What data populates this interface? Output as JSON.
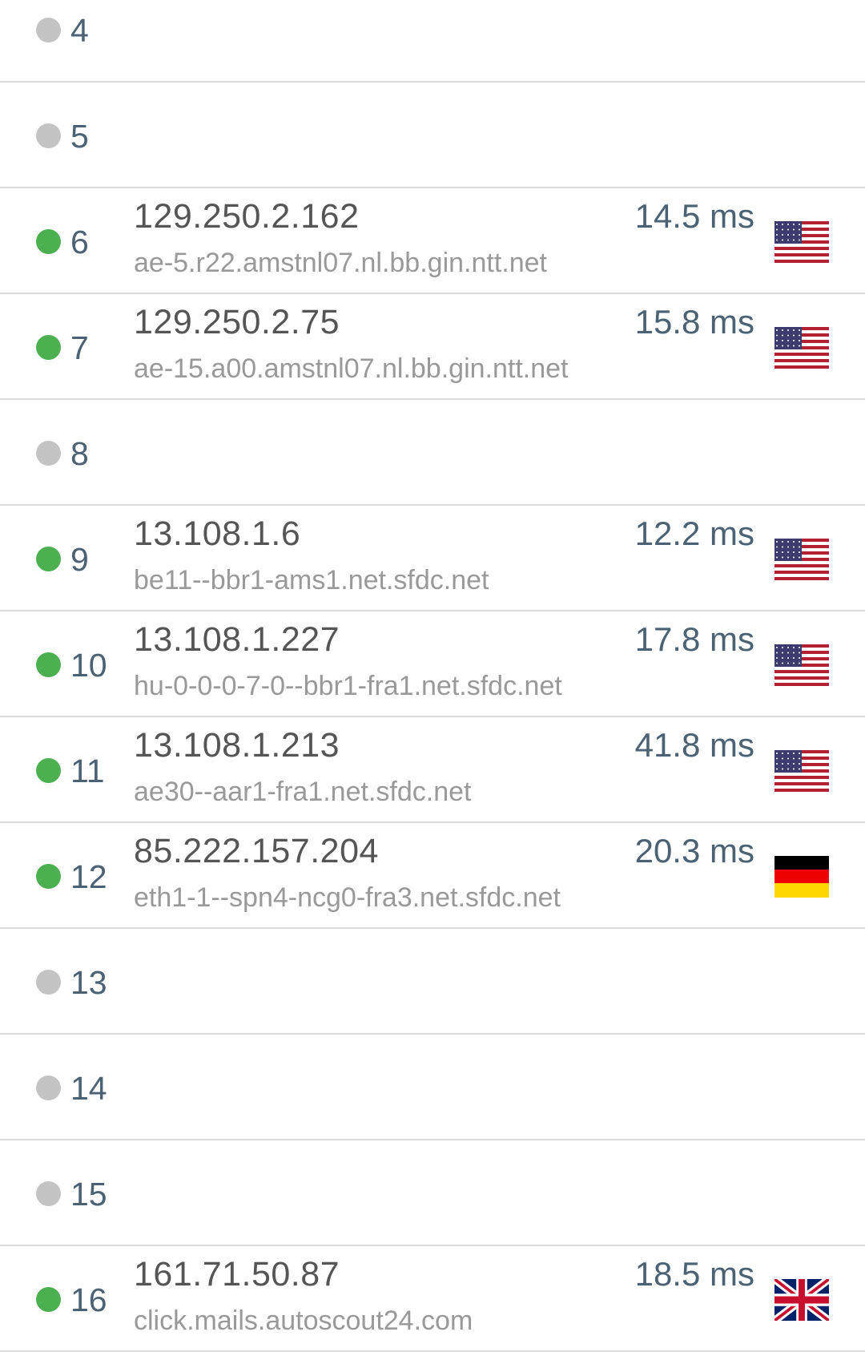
{
  "colors": {
    "responded": "#4caf50",
    "no_response": "#c4c4c4"
  },
  "hops": [
    {
      "hop": "4",
      "status": "no_response"
    },
    {
      "hop": "5",
      "status": "no_response"
    },
    {
      "hop": "6",
      "status": "responded",
      "ip": "129.250.2.162",
      "host": "ae-5.r22.amstnl07.nl.bb.gin.ntt.net",
      "latency": "14.5 ms",
      "flag": "us"
    },
    {
      "hop": "7",
      "status": "responded",
      "ip": "129.250.2.75",
      "host": "ae-15.a00.amstnl07.nl.bb.gin.ntt.net",
      "latency": "15.8 ms",
      "flag": "us"
    },
    {
      "hop": "8",
      "status": "no_response"
    },
    {
      "hop": "9",
      "status": "responded",
      "ip": "13.108.1.6",
      "host": "be11--bbr1-ams1.net.sfdc.net",
      "latency": "12.2 ms",
      "flag": "us"
    },
    {
      "hop": "10",
      "status": "responded",
      "ip": "13.108.1.227",
      "host": "hu-0-0-0-7-0--bbr1-fra1.net.sfdc.net",
      "latency": "17.8 ms",
      "flag": "us"
    },
    {
      "hop": "11",
      "status": "responded",
      "ip": "13.108.1.213",
      "host": "ae30--aar1-fra1.net.sfdc.net",
      "latency": "41.8 ms",
      "flag": "us"
    },
    {
      "hop": "12",
      "status": "responded",
      "ip": "85.222.157.204",
      "host": "eth1-1--spn4-ncg0-fra3.net.sfdc.net",
      "latency": "20.3 ms",
      "flag": "de"
    },
    {
      "hop": "13",
      "status": "no_response"
    },
    {
      "hop": "14",
      "status": "no_response"
    },
    {
      "hop": "15",
      "status": "no_response"
    },
    {
      "hop": "16",
      "status": "responded",
      "ip": "161.71.50.87",
      "host": "click.mails.autoscout24.com",
      "latency": "18.5 ms",
      "flag": "gb"
    }
  ]
}
